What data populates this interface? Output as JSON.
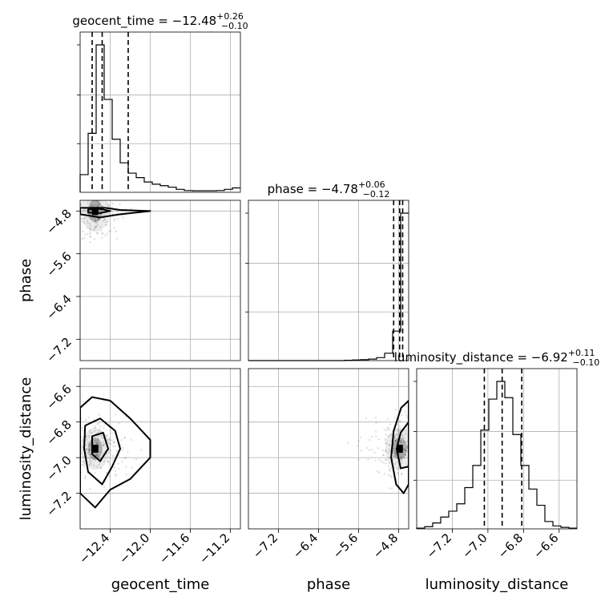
{
  "chart_data": {
    "type": "corner",
    "grid": true,
    "parameters": [
      "geocent_time",
      "phase",
      "luminosity_distance"
    ],
    "marginals": [
      {
        "name": "geocent_time",
        "title_label": "geocent_time = −12.48",
        "title_sup": "+0.26",
        "title_sub": "−0.10",
        "median": -12.48,
        "quantiles": [
          -12.58,
          -12.48,
          -12.22
        ],
        "xlim": [
          -12.7,
          -11.1
        ],
        "bin_edges": [
          -12.7,
          -12.62,
          -12.54,
          -12.46,
          -12.38,
          -12.3,
          -12.22,
          -12.14,
          -12.06,
          -11.98,
          -11.9,
          -11.82,
          -11.74,
          -11.66,
          -11.58,
          -11.5,
          -11.42,
          -11.34,
          -11.26,
          -11.18,
          -11.1
        ],
        "counts": [
          0.12,
          0.4,
          1.0,
          0.63,
          0.36,
          0.2,
          0.13,
          0.1,
          0.07,
          0.055,
          0.045,
          0.035,
          0.02,
          0.012,
          0.01,
          0.01,
          0.01,
          0.012,
          0.02,
          0.03
        ]
      },
      {
        "name": "phase",
        "title_label": "phase = −4.78",
        "title_sup": "+0.06",
        "title_sub": "−0.12",
        "median": -4.78,
        "quantiles": [
          -4.9,
          -4.78,
          -4.72
        ],
        "xlim": [
          -7.8,
          -4.6
        ],
        "bin_edges": [
          -7.8,
          -7.64,
          -7.48,
          -7.32,
          -7.16,
          -7.0,
          -6.84,
          -6.68,
          -6.52,
          -6.36,
          -6.2,
          -6.04,
          -5.88,
          -5.72,
          -5.56,
          -5.4,
          -5.24,
          -5.08,
          -4.92,
          -4.76,
          -4.6
        ],
        "counts": [
          0,
          0,
          0,
          0,
          0,
          0,
          0,
          0,
          0,
          0,
          0,
          0,
          0.002,
          0.004,
          0.006,
          0.01,
          0.02,
          0.05,
          0.2,
          1.0
        ]
      },
      {
        "name": "luminosity_distance",
        "title_label": "luminosity_distance = −6.92",
        "title_sup": "+0.11",
        "title_sub": "−0.10",
        "median": -6.92,
        "quantiles": [
          -7.02,
          -6.92,
          -6.81
        ],
        "xlim": [
          -7.4,
          -6.5
        ],
        "bin_edges": [
          -7.4,
          -7.355,
          -7.31,
          -7.265,
          -7.22,
          -7.175,
          -7.13,
          -7.085,
          -7.04,
          -6.995,
          -6.95,
          -6.905,
          -6.86,
          -6.815,
          -6.77,
          -6.725,
          -6.68,
          -6.635,
          -6.59,
          -6.545,
          -6.5
        ],
        "counts": [
          0.005,
          0.015,
          0.04,
          0.08,
          0.12,
          0.17,
          0.28,
          0.43,
          0.67,
          0.88,
          1.0,
          0.89,
          0.64,
          0.43,
          0.27,
          0.16,
          0.05,
          0.02,
          0.01,
          0.005
        ]
      }
    ],
    "axis_labels": [
      "geocent_time",
      "phase",
      "luminosity_distance"
    ],
    "x_ticks": [
      [
        -12.4,
        -12.0,
        -11.6,
        -11.2
      ],
      [
        -7.2,
        -6.4,
        -5.6,
        -4.8
      ],
      [
        -7.2,
        -7.0,
        -6.8,
        -6.6
      ]
    ],
    "y_ticks": {
      "phase": [
        -4.8,
        -5.6,
        -6.4,
        -7.2
      ],
      "luminosity_distance": [
        -6.6,
        -6.8,
        -7.0,
        -7.2
      ]
    },
    "tick_labels": {
      "geocent_time": [
        "−12.4",
        "−12.0",
        "−11.6",
        "−11.2"
      ],
      "phase": [
        "−7.2",
        "−6.4",
        "−5.6",
        "−4.8"
      ],
      "luminosity_distance": [
        "−7.2",
        "−7.0",
        "−6.8",
        "−6.6"
      ],
      "phase_y": [
        "−4.8",
        "−5.6",
        "−6.4",
        "−7.2"
      ],
      "luminosity_distance_y": [
        "−6.6",
        "−6.8",
        "−7.0",
        "−7.2"
      ]
    },
    "ylims": {
      "phase": [
        -7.6,
        -4.6
      ],
      "luminosity_distance": [
        -7.4,
        -6.5
      ]
    },
    "pair_panels": [
      {
        "x": "geocent_time",
        "y": "phase",
        "mode": [
          -12.55,
          -4.8
        ],
        "contours": [
          [
            [
              -12.7,
              -4.74
            ],
            [
              -12.45,
              -4.74
            ],
            [
              -12.3,
              -4.78
            ],
            [
              -12.0,
              -4.8
            ],
            [
              -12.3,
              -4.86
            ],
            [
              -12.5,
              -4.92
            ],
            [
              -12.7,
              -4.86
            ]
          ],
          [
            [
              -12.62,
              -4.77
            ],
            [
              -12.5,
              -4.76
            ],
            [
              -12.4,
              -4.8
            ],
            [
              -12.5,
              -4.84
            ],
            [
              -12.62,
              -4.83
            ]
          ]
        ]
      },
      {
        "x": "geocent_time",
        "y": "luminosity_distance",
        "mode": [
          -12.55,
          -6.95
        ],
        "contours": [
          [
            [
              -12.7,
              -6.72
            ],
            [
              -12.58,
              -6.66
            ],
            [
              -12.4,
              -6.68
            ],
            [
              -12.2,
              -6.78
            ],
            [
              -12.0,
              -6.9
            ],
            [
              -12.0,
              -7.0
            ],
            [
              -12.2,
              -7.12
            ],
            [
              -12.4,
              -7.18
            ],
            [
              -12.55,
              -7.28
            ],
            [
              -12.7,
              -7.2
            ]
          ],
          [
            [
              -12.65,
              -6.82
            ],
            [
              -12.5,
              -6.78
            ],
            [
              -12.35,
              -6.85
            ],
            [
              -12.3,
              -6.95
            ],
            [
              -12.38,
              -7.05
            ],
            [
              -12.48,
              -7.15
            ],
            [
              -12.62,
              -7.08
            ],
            [
              -12.66,
              -6.95
            ]
          ],
          [
            [
              -12.58,
              -6.88
            ],
            [
              -12.47,
              -6.86
            ],
            [
              -12.42,
              -6.95
            ],
            [
              -12.5,
              -7.02
            ],
            [
              -12.58,
              -6.98
            ]
          ]
        ]
      },
      {
        "x": "phase",
        "y": "luminosity_distance",
        "mode": [
          -4.78,
          -6.95
        ],
        "contours": [
          [
            [
              -4.6,
              -6.68
            ],
            [
              -4.75,
              -6.72
            ],
            [
              -4.9,
              -6.85
            ],
            [
              -4.95,
              -7.0
            ],
            [
              -4.85,
              -7.15
            ],
            [
              -4.7,
              -7.2
            ],
            [
              -4.6,
              -7.15
            ]
          ],
          [
            [
              -4.6,
              -6.8
            ],
            [
              -4.76,
              -6.86
            ],
            [
              -4.84,
              -6.95
            ],
            [
              -4.76,
              -7.06
            ],
            [
              -4.6,
              -7.05
            ]
          ]
        ]
      }
    ]
  }
}
